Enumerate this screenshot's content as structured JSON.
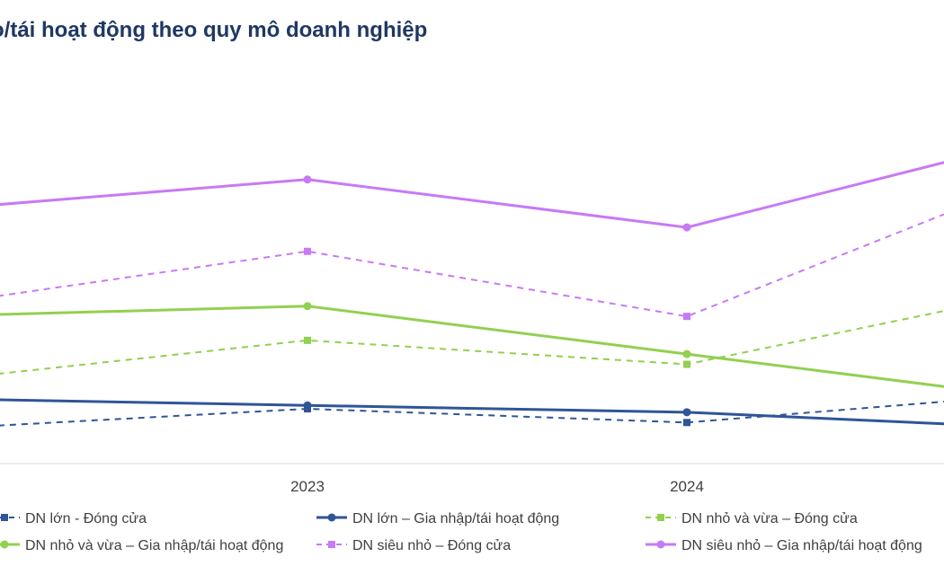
{
  "title": "o/tái hoạt động theo quy mô doanh nghiệp",
  "chart_data": {
    "type": "line",
    "categories": [
      "",
      "2023",
      "2024",
      ""
    ],
    "ylim": [
      0,
      100
    ],
    "grid": false,
    "legend_position": "bottom",
    "series": [
      {
        "name": "DN lớn - Đóng cửa",
        "color": "#2f5597",
        "dashed": true,
        "values": [
          10,
          16,
          12,
          21
        ]
      },
      {
        "name": "DN lớn – Gia nhập/tái hoạt động",
        "color": "#2f5597",
        "dashed": false,
        "values": [
          19,
          17,
          15,
          10
        ]
      },
      {
        "name": "DN nhỏ và vừa – Đóng cửa",
        "color": "#92d050",
        "dashed": true,
        "values": [
          24,
          36,
          29,
          52
        ]
      },
      {
        "name": "DN nhỏ và vừa – Gia nhập/tái hoạt động",
        "color": "#92d050",
        "dashed": false,
        "values": [
          43,
          46,
          32,
          18
        ]
      },
      {
        "name": "DN siêu nhỏ – Đóng cửa",
        "color": "#c77af5",
        "dashed": true,
        "values": [
          46,
          62,
          43,
          87
        ]
      },
      {
        "name": "DN siêu nhỏ – Gia nhập/tái hoạt động",
        "color": "#c77af5",
        "dashed": false,
        "values": [
          74,
          83,
          69,
          97
        ]
      }
    ]
  }
}
